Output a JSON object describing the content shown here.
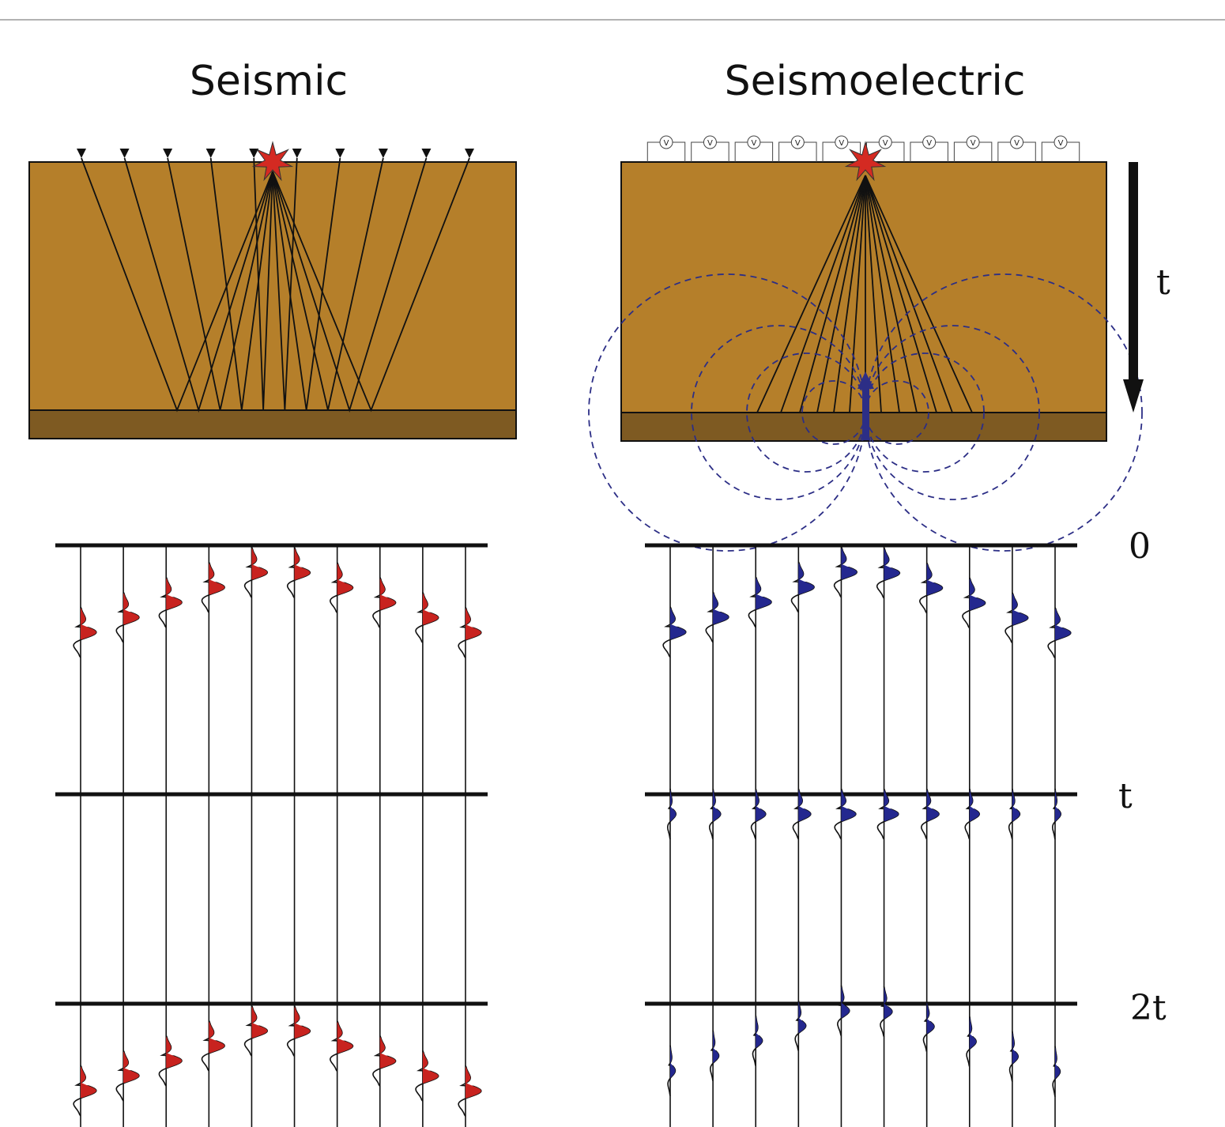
{
  "panels": {
    "left": {
      "title": "Seismic",
      "wavelet_color": "#c8231f"
    },
    "right": {
      "title": "Seismoelectric",
      "wavelet_color": "#24288f",
      "receiver_label": "V"
    }
  },
  "time_labels": {
    "zero": "0",
    "t": "t",
    "two_t": "2t"
  },
  "arrow_label": "t",
  "colors": {
    "ground": "#b57f2a",
    "interface_layer": "#7e5a22",
    "source_star": "#d42a22",
    "field_lines": "#2c2e86"
  },
  "receiver_count": 10
}
